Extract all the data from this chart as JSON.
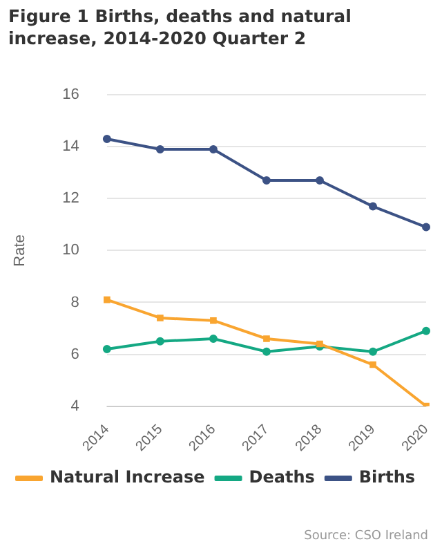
{
  "chart_data": {
    "type": "line",
    "title": "Figure 1 Births, deaths and natural increase, 2014-2020 Quarter 2",
    "ylabel": "Rate",
    "categories": [
      "2014",
      "2015",
      "2016",
      "2017",
      "2018",
      "2019",
      "2020"
    ],
    "series": [
      {
        "name": "Births",
        "color": "#3c5285",
        "values": [
          14.3,
          13.9,
          13.9,
          12.7,
          12.7,
          11.7,
          10.9
        ]
      },
      {
        "name": "Deaths",
        "color": "#14a883",
        "values": [
          6.2,
          6.5,
          6.6,
          6.1,
          6.3,
          6.1,
          6.9
        ]
      },
      {
        "name": "Natural Increase",
        "color": "#f9a530",
        "values": [
          8.1,
          7.4,
          7.3,
          6.6,
          6.4,
          5.6,
          4.0
        ],
        "marker": "square"
      }
    ],
    "ylim": [
      4,
      16
    ],
    "yticks": [
      4,
      6,
      8,
      10,
      12,
      14,
      16
    ],
    "grid": "y",
    "legend": "bottom",
    "marker": "circle",
    "line_style": "solid",
    "annotations": [
      "Source: CSO Ireland"
    ]
  }
}
